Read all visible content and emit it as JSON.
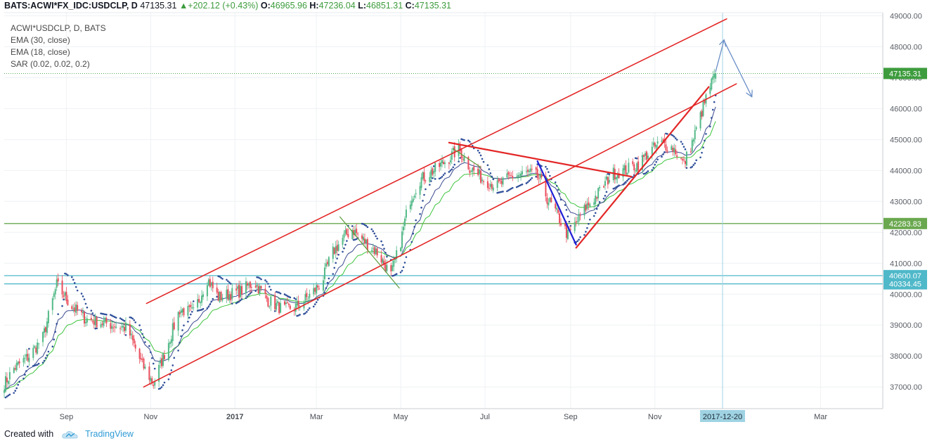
{
  "header": {
    "symbol": "BATS:ACWI*FX_IDC:USDCLP, D",
    "last": "47135.31",
    "change": "▲+202.12 (+0.43%)",
    "open_label": "O:",
    "open": "46965.96",
    "high_label": "H:",
    "high": "47236.04",
    "low_label": "L:",
    "low": "46851.31",
    "close_label": "C:",
    "close": "47135.31"
  },
  "legend": {
    "title": "ACWI*USDCLP, D, BATS",
    "ema30": "EMA (30, close)",
    "ema18": "EMA (18, close)",
    "sar": "SAR (0.02, 0.02, 0.2)"
  },
  "footer": {
    "created": "Created with",
    "brand": "TradingView"
  },
  "chart_data": {
    "type": "candlestick",
    "y_ticks": [
      "37000.00",
      "38000.00",
      "39000.00",
      "40000.00",
      "41000.00",
      "42000.00",
      "43000.00",
      "44000.00",
      "45000.00",
      "46000.00",
      "47000.00",
      "48000.00",
      "49000.00"
    ],
    "ylim": [
      36300,
      49100
    ],
    "x_ticks": [
      {
        "label": "Sep",
        "x": "2016-09-01"
      },
      {
        "label": "Nov",
        "x": "2016-11-01"
      },
      {
        "label": "2017",
        "x": "2017-01-01"
      },
      {
        "label": "Mar",
        "x": "2017-03-01"
      },
      {
        "label": "May",
        "x": "2017-05-01"
      },
      {
        "label": "Jul",
        "x": "2017-07-01"
      },
      {
        "label": "Sep",
        "x": "2017-09-01"
      },
      {
        "label": "Nov",
        "x": "2017-11-01"
      },
      {
        "label": "Mar",
        "x": "2018-03-01"
      }
    ],
    "xlim": [
      "2016-07-18",
      "2018-04-15"
    ],
    "crosshair_date": "2017-12-20",
    "crosshair_label": "2017-12-20",
    "price_labels": [
      {
        "value": 47135.31,
        "text": "47135.31",
        "color": "#3d9c3d"
      },
      {
        "value": 42283.83,
        "text": "42283.83",
        "color": "#6aa84f"
      },
      {
        "value": 40600.07,
        "text": "40600.07",
        "color": "#4fb8c9"
      },
      {
        "value": 40334.45,
        "text": "40334.45",
        "color": "#4fb8c9"
      }
    ],
    "horizontal_lines": [
      {
        "value": 42283.83,
        "color": "#6aa84f"
      },
      {
        "value": 40600.07,
        "color": "#4fb8c9"
      },
      {
        "value": 40334.45,
        "color": "#4fb8c9"
      }
    ],
    "close_anchors": [
      [
        "2016-07-18",
        37100
      ],
      [
        "2016-07-25",
        37600
      ],
      [
        "2016-08-05",
        38000
      ],
      [
        "2016-08-15",
        38600
      ],
      [
        "2016-08-25",
        40300
      ],
      [
        "2016-09-05",
        39600
      ],
      [
        "2016-09-15",
        39200
      ],
      [
        "2016-09-25",
        39100
      ],
      [
        "2016-10-05",
        39000
      ],
      [
        "2016-10-15",
        38900
      ],
      [
        "2016-10-25",
        37800
      ],
      [
        "2016-11-03",
        37100
      ],
      [
        "2016-11-12",
        38200
      ],
      [
        "2016-11-22",
        39500
      ],
      [
        "2016-12-02",
        39400
      ],
      [
        "2016-12-12",
        40500
      ],
      [
        "2016-12-20",
        39900
      ],
      [
        "2017-01-05",
        40100
      ],
      [
        "2017-01-15",
        40400
      ],
      [
        "2017-01-25",
        39800
      ],
      [
        "2017-02-05",
        39500
      ],
      [
        "2017-02-15",
        39600
      ],
      [
        "2017-02-25",
        40000
      ],
      [
        "2017-03-05",
        40400
      ],
      [
        "2017-03-12",
        41300
      ],
      [
        "2017-03-20",
        41800
      ],
      [
        "2017-03-27",
        42100
      ],
      [
        "2017-04-05",
        41700
      ],
      [
        "2017-04-15",
        41300
      ],
      [
        "2017-04-24",
        40600
      ],
      [
        "2017-05-01",
        41700
      ],
      [
        "2017-05-07",
        43000
      ],
      [
        "2017-05-15",
        43700
      ],
      [
        "2017-05-25",
        44000
      ],
      [
        "2017-06-05",
        44400
      ],
      [
        "2017-06-12",
        44700
      ],
      [
        "2017-06-20",
        44100
      ],
      [
        "2017-06-30",
        43700
      ],
      [
        "2017-07-10",
        43500
      ],
      [
        "2017-07-20",
        43800
      ],
      [
        "2017-07-30",
        43900
      ],
      [
        "2017-08-05",
        43900
      ],
      [
        "2017-08-10",
        43700
      ],
      [
        "2017-08-15",
        43100
      ],
      [
        "2017-08-22",
        42600
      ],
      [
        "2017-08-30",
        41900
      ],
      [
        "2017-09-05",
        42300
      ],
      [
        "2017-09-12",
        42800
      ],
      [
        "2017-09-20",
        43200
      ],
      [
        "2017-10-01",
        43900
      ],
      [
        "2017-10-10",
        44000
      ],
      [
        "2017-10-20",
        44200
      ],
      [
        "2017-10-28",
        44600
      ],
      [
        "2017-11-05",
        44900
      ],
      [
        "2017-11-15",
        44700
      ],
      [
        "2017-11-22",
        44200
      ],
      [
        "2017-11-28",
        44900
      ],
      [
        "2017-12-05",
        45900
      ],
      [
        "2017-12-10",
        46600
      ],
      [
        "2017-12-15",
        47135
      ]
    ],
    "drawings": [
      {
        "type": "line",
        "color": "#e32626",
        "width": 1.6,
        "points": [
          [
            "2016-10-29",
            39700
          ],
          [
            "2017-12-23",
            48900
          ]
        ]
      },
      {
        "type": "line",
        "color": "#e32626",
        "width": 1.6,
        "points": [
          [
            "2016-10-27",
            37000
          ],
          [
            "2017-12-30",
            46800
          ]
        ]
      },
      {
        "type": "line",
        "color": "#e32626",
        "width": 2.2,
        "points": [
          [
            "2017-06-05",
            44900
          ],
          [
            "2017-10-15",
            43800
          ]
        ]
      },
      {
        "type": "line",
        "color": "#e32626",
        "width": 2.2,
        "points": [
          [
            "2017-09-05",
            41500
          ],
          [
            "2017-12-10",
            46700
          ]
        ]
      },
      {
        "type": "line",
        "color": "#1f1fd6",
        "width": 2.2,
        "points": [
          [
            "2017-08-08",
            44300
          ],
          [
            "2017-09-05",
            41600
          ]
        ]
      },
      {
        "type": "line",
        "color": "#5b9b3a",
        "width": 1.2,
        "points": [
          [
            "2017-03-18",
            42500
          ],
          [
            "2017-04-30",
            40200
          ]
        ]
      },
      {
        "type": "line",
        "color": "#5b9b3a",
        "width": 1.2,
        "points": [
          [
            "2017-06-08",
            44700
          ],
          [
            "2017-06-28",
            44100
          ]
        ]
      },
      {
        "type": "arrow",
        "color": "#6b8fc7",
        "width": 1.3,
        "points": [
          [
            "2017-12-15",
            47200
          ],
          [
            "2017-12-21",
            48200
          ]
        ]
      },
      {
        "type": "arrow",
        "color": "#6b8fc7",
        "width": 1.3,
        "points": [
          [
            "2017-12-21",
            48200
          ],
          [
            "2018-01-10",
            46400
          ]
        ]
      }
    ]
  }
}
